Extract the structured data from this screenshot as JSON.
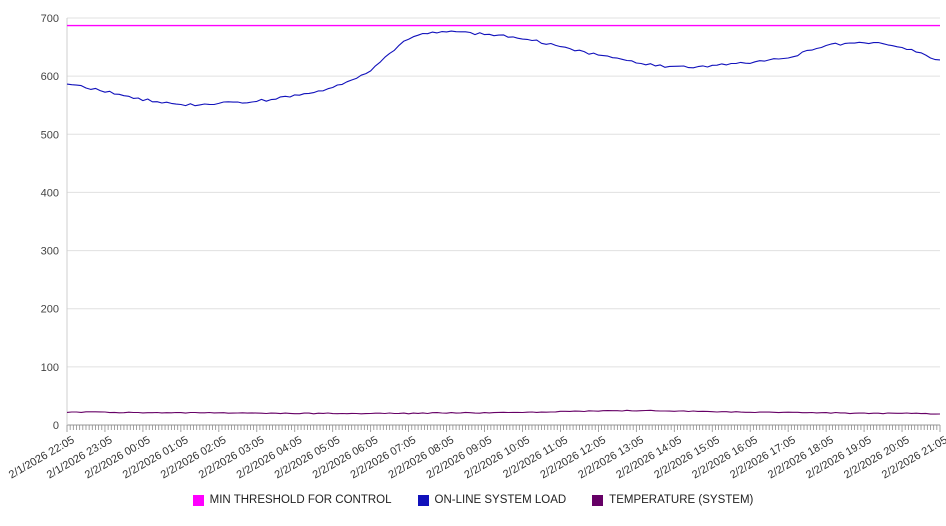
{
  "chart_data": {
    "type": "line",
    "title": "",
    "xlabel": "",
    "ylabel": "",
    "ylim": [
      0,
      700
    ],
    "y_tick_step": 100,
    "grid": "horizontal",
    "legend_position": "bottom",
    "x_labels": [
      "2/1/2026 22:05",
      "2/1/2026 23:05",
      "2/2/2026 00:05",
      "2/2/2026 01:05",
      "2/2/2026 02:05",
      "2/2/2026 03:05",
      "2/2/2026 04:05",
      "2/2/2026 05:05",
      "2/2/2026 06:05",
      "2/2/2026 07:05",
      "2/2/2026 08:05",
      "2/2/2026 09:05",
      "2/2/2026 10:05",
      "2/2/2026 11:05",
      "2/2/2026 12:05",
      "2/2/2026 13:05",
      "2/2/2026 14:05",
      "2/2/2026 15:05",
      "2/2/2026 16:05",
      "2/2/2026 17:05",
      "2/2/2026 18:05",
      "2/2/2026 19:05",
      "2/2/2026 20:05",
      "2/2/2026 21:05"
    ],
    "series": [
      {
        "name": "MIN THRESHOLD FOR CONTROL",
        "color": "#ff00ff",
        "values": [
          687
        ],
        "jitter": 0
      },
      {
        "name": "ON-LINE SYSTEM LOAD",
        "color": "#1111bb",
        "values": [
          586,
          574,
          560,
          551,
          553,
          557,
          566,
          580,
          610,
          664,
          676,
          672,
          665,
          650,
          636,
          623,
          616,
          618,
          624,
          632,
          652,
          657,
          650,
          628
        ],
        "jitter": 2.2
      },
      {
        "name": "TEMPERATURE (SYSTEM)",
        "color": "#660066",
        "values": [
          22,
          22,
          21,
          21,
          21,
          20,
          20,
          20,
          20,
          20,
          21,
          21,
          22,
          23,
          24,
          25,
          24,
          23,
          22,
          22,
          21,
          20,
          20,
          19
        ],
        "jitter": 0.7
      }
    ]
  }
}
